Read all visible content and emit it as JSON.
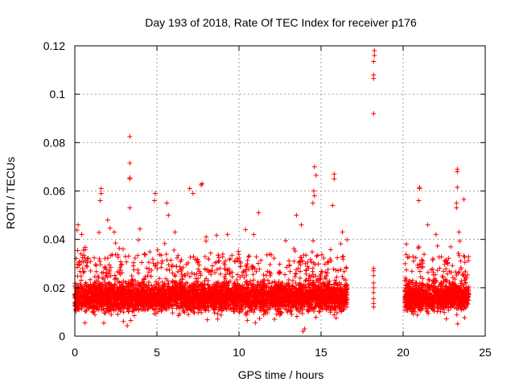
{
  "chart_data": {
    "type": "scatter",
    "title": "Day 193 of 2018, Rate Of TEC Index for receiver p176",
    "xlabel": "GPS time / hours",
    "ylabel": "ROTI / TECUs",
    "xlim": [
      0,
      25
    ],
    "ylim": [
      0,
      0.12
    ],
    "xticks": [
      0,
      5,
      10,
      15,
      20,
      25
    ],
    "xtick_labels": [
      "0",
      "5",
      "10",
      "15",
      "20",
      "25"
    ],
    "yticks": [
      0,
      0.02,
      0.04,
      0.06,
      0.08,
      0.1,
      0.12
    ],
    "ytick_labels": [
      "0",
      "0.02",
      "0.04",
      "0.06",
      "0.08",
      "0.1",
      "0.12"
    ],
    "grid": true,
    "marker": "+",
    "color": "#ff0000",
    "series": [
      {
        "name": "ROTI",
        "dense_segments": [
          {
            "x_start": 0.0,
            "x_end": 16.6,
            "typical_range": [
              0.01,
              0.025
            ],
            "spread_range": [
              0.004,
              0.045
            ]
          },
          {
            "x_start": 20.1,
            "x_end": 24.0,
            "typical_range": [
              0.01,
              0.025
            ],
            "spread_range": [
              0.005,
              0.04
            ]
          }
        ],
        "outliers": [
          {
            "x": 1.6,
            "y": 0.061
          },
          {
            "x": 1.6,
            "y": 0.059
          },
          {
            "x": 1.55,
            "y": 0.056
          },
          {
            "x": 3.35,
            "y": 0.0825
          },
          {
            "x": 3.35,
            "y": 0.0715
          },
          {
            "x": 3.35,
            "y": 0.0655
          },
          {
            "x": 3.35,
            "y": 0.065
          },
          {
            "x": 3.35,
            "y": 0.053
          },
          {
            "x": 4.9,
            "y": 0.059
          },
          {
            "x": 4.85,
            "y": 0.056
          },
          {
            "x": 5.6,
            "y": 0.055
          },
          {
            "x": 5.7,
            "y": 0.05
          },
          {
            "x": 7.0,
            "y": 0.061
          },
          {
            "x": 7.2,
            "y": 0.059
          },
          {
            "x": 7.75,
            "y": 0.063
          },
          {
            "x": 7.7,
            "y": 0.0625
          },
          {
            "x": 11.2,
            "y": 0.051
          },
          {
            "x": 13.5,
            "y": 0.05
          },
          {
            "x": 13.8,
            "y": 0.046
          },
          {
            "x": 14.6,
            "y": 0.07
          },
          {
            "x": 14.7,
            "y": 0.0665
          },
          {
            "x": 14.55,
            "y": 0.06
          },
          {
            "x": 14.6,
            "y": 0.058
          },
          {
            "x": 14.5,
            "y": 0.055
          },
          {
            "x": 15.8,
            "y": 0.067
          },
          {
            "x": 15.8,
            "y": 0.065
          },
          {
            "x": 15.7,
            "y": 0.054
          },
          {
            "x": 18.25,
            "y": 0.118
          },
          {
            "x": 18.25,
            "y": 0.116
          },
          {
            "x": 18.2,
            "y": 0.1135
          },
          {
            "x": 18.2,
            "y": 0.108
          },
          {
            "x": 18.2,
            "y": 0.1065
          },
          {
            "x": 18.2,
            "y": 0.092
          },
          {
            "x": 18.2,
            "y": 0.028
          },
          {
            "x": 18.2,
            "y": 0.027
          },
          {
            "x": 18.2,
            "y": 0.025
          },
          {
            "x": 18.2,
            "y": 0.022
          },
          {
            "x": 18.2,
            "y": 0.02
          },
          {
            "x": 18.2,
            "y": 0.018
          },
          {
            "x": 18.2,
            "y": 0.0155
          },
          {
            "x": 18.2,
            "y": 0.0135
          },
          {
            "x": 18.2,
            "y": 0.012
          },
          {
            "x": 21.0,
            "y": 0.0615
          },
          {
            "x": 21.0,
            "y": 0.061
          },
          {
            "x": 20.95,
            "y": 0.056
          },
          {
            "x": 23.3,
            "y": 0.069
          },
          {
            "x": 23.3,
            "y": 0.068
          },
          {
            "x": 23.3,
            "y": 0.0615
          },
          {
            "x": 23.25,
            "y": 0.055
          },
          {
            "x": 23.25,
            "y": 0.053
          },
          {
            "x": 23.7,
            "y": 0.0565
          },
          {
            "x": 0.2,
            "y": 0.046
          },
          {
            "x": 2.0,
            "y": 0.048
          },
          {
            "x": 2.4,
            "y": 0.043
          },
          {
            "x": 6.1,
            "y": 0.043
          },
          {
            "x": 8.0,
            "y": 0.041
          },
          {
            "x": 9.3,
            "y": 0.042
          },
          {
            "x": 10.4,
            "y": 0.044
          },
          {
            "x": 10.9,
            "y": 0.042
          },
          {
            "x": 16.3,
            "y": 0.043
          },
          {
            "x": 20.2,
            "y": 0.038
          },
          {
            "x": 21.5,
            "y": 0.046
          },
          {
            "x": 22.0,
            "y": 0.042
          },
          {
            "x": 23.4,
            "y": 0.043
          },
          {
            "x": 13.9,
            "y": 0.002
          },
          {
            "x": 14.0,
            "y": 0.003
          }
        ]
      }
    ]
  }
}
